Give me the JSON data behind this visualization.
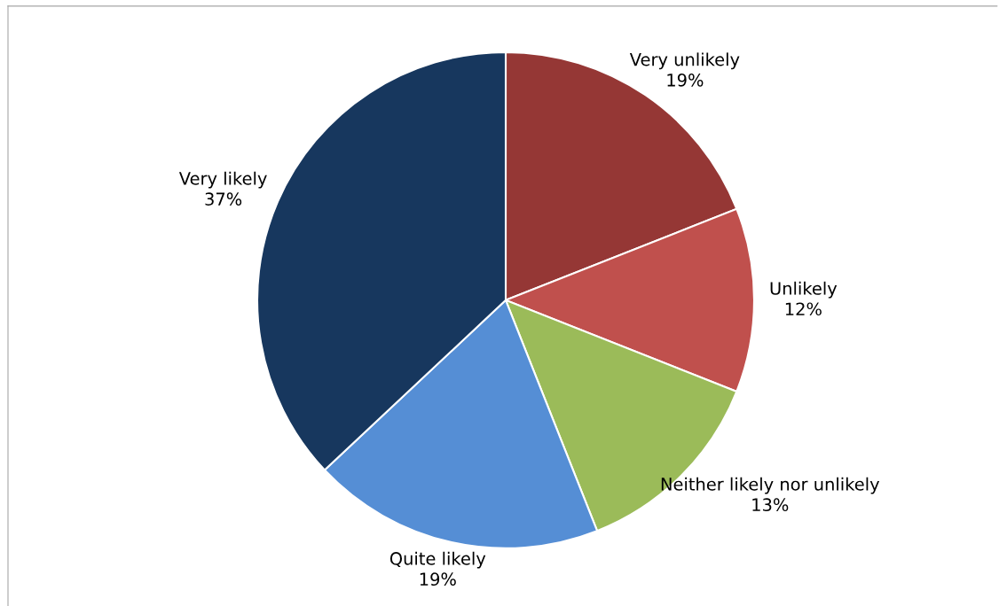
{
  "chart_data": {
    "type": "pie",
    "categories": [
      "Very unlikely",
      "Unlikely",
      "Neither likely nor unlikely",
      "Quite likely",
      "Very likely"
    ],
    "values": [
      19,
      12,
      13,
      19,
      37
    ],
    "value_labels": [
      "19%",
      "12%",
      "13%",
      "19%",
      "37%"
    ],
    "colors": [
      "#953735",
      "#c0504d",
      "#9bbb59",
      "#558ed5",
      "#17375e"
    ],
    "legend": false
  }
}
